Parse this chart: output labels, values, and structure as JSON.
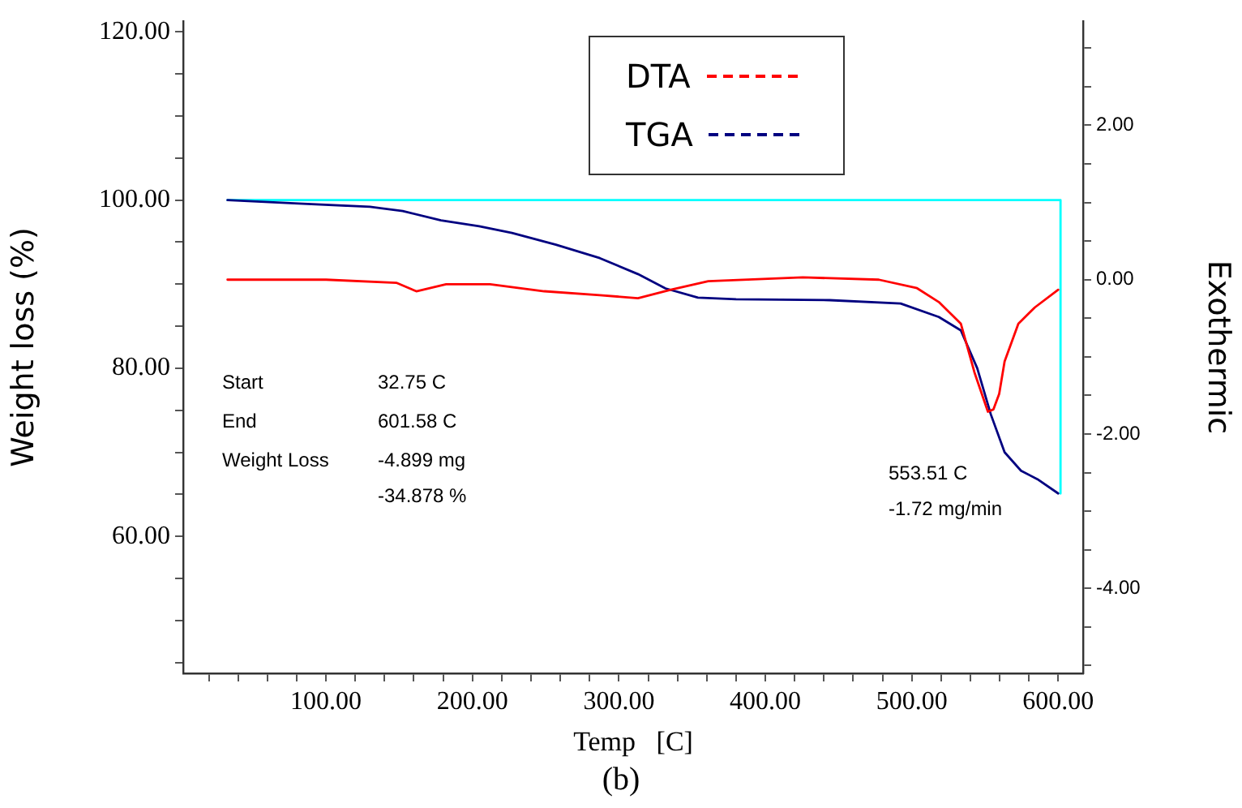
{
  "chart_data": {
    "type": "line",
    "xlabel": "Temp   [C]",
    "ylabel": "Weight loss (%)",
    "y2label": "Exothermic",
    "xlim": [
      2.5,
      617
    ],
    "xticks": [
      {
        "value": 20,
        "label": null
      },
      {
        "value": 40,
        "label": null
      },
      {
        "value": 60,
        "label": null
      },
      {
        "value": 80,
        "label": null
      },
      {
        "value": 100,
        "label": "100.00"
      },
      {
        "value": 120,
        "label": null
      },
      {
        "value": 140,
        "label": null
      },
      {
        "value": 160,
        "label": null
      },
      {
        "value": 180,
        "label": null
      },
      {
        "value": 200,
        "label": "200.00"
      },
      {
        "value": 220,
        "label": null
      },
      {
        "value": 240,
        "label": null
      },
      {
        "value": 260,
        "label": null
      },
      {
        "value": 280,
        "label": null
      },
      {
        "value": 300,
        "label": "300.00"
      },
      {
        "value": 320,
        "label": null
      },
      {
        "value": 340,
        "label": null
      },
      {
        "value": 360,
        "label": null
      },
      {
        "value": 380,
        "label": null
      },
      {
        "value": 400,
        "label": "400.00"
      },
      {
        "value": 420,
        "label": null
      },
      {
        "value": 440,
        "label": null
      },
      {
        "value": 460,
        "label": null
      },
      {
        "value": 480,
        "label": null
      },
      {
        "value": 500,
        "label": "500.00"
      },
      {
        "value": 520,
        "label": null
      },
      {
        "value": 540,
        "label": null
      },
      {
        "value": 560,
        "label": null
      },
      {
        "value": 580,
        "label": null
      },
      {
        "value": 600,
        "label": "600.00"
      }
    ],
    "ylim": [
      43.7,
      121.3
    ],
    "yticks": [
      {
        "value": 45,
        "label": null
      },
      {
        "value": 50,
        "label": null
      },
      {
        "value": 55,
        "label": null
      },
      {
        "value": 60,
        "label": "60.00"
      },
      {
        "value": 65,
        "label": null
      },
      {
        "value": 70,
        "label": null
      },
      {
        "value": 75,
        "label": null
      },
      {
        "value": 80,
        "label": "80.00"
      },
      {
        "value": 85,
        "label": null
      },
      {
        "value": 90,
        "label": null
      },
      {
        "value": 95,
        "label": null
      },
      {
        "value": 100,
        "label": "100.00"
      },
      {
        "value": 105,
        "label": null
      },
      {
        "value": 110,
        "label": null
      },
      {
        "value": 115,
        "label": null
      },
      {
        "value": 120,
        "label": "120.00"
      }
    ],
    "y2lim": [
      -5.1,
      3.35
    ],
    "y2ticks": [
      {
        "value": -5,
        "label": null
      },
      {
        "value": -4.5,
        "label": null
      },
      {
        "value": -4,
        "label": "-4.00"
      },
      {
        "value": -3.5,
        "label": null
      },
      {
        "value": -3,
        "label": null
      },
      {
        "value": -2.5,
        "label": null
      },
      {
        "value": -2,
        "label": "-2.00"
      },
      {
        "value": -1.5,
        "label": null
      },
      {
        "value": -1,
        "label": null
      },
      {
        "value": -0.5,
        "label": null
      },
      {
        "value": 0,
        "label": "0.00"
      },
      {
        "value": 0.5,
        "label": null
      },
      {
        "value": 1,
        "label": null
      },
      {
        "value": 1.5,
        "label": null
      },
      {
        "value": 2,
        "label": "2.00"
      },
      {
        "value": 2.5,
        "label": null
      },
      {
        "value": 3,
        "label": null
      }
    ],
    "legend": "top",
    "series": [
      {
        "name": "DTA",
        "color": "#ff0000",
        "axis": "y2",
        "x": [
          32.75,
          100,
          148,
          161.7,
          182,
          212,
          249,
          287,
          313,
          335.5,
          361,
          425.6,
          477.5,
          503.6,
          518.5,
          533.5,
          542.8,
          552,
          555.8,
          559.7,
          563.4,
          572.8,
          584,
          600
        ],
        "values": [
          0,
          0,
          -0.04,
          -0.15,
          -0.06,
          -0.06,
          -0.15,
          -0.2,
          -0.24,
          -0.13,
          -0.02,
          0.03,
          0,
          -0.11,
          -0.29,
          -0.57,
          -1.2,
          -1.71,
          -1.68,
          -1.48,
          -1.06,
          -0.57,
          -0.36,
          -0.13
        ]
      },
      {
        "name": "TGA",
        "color": "#000080",
        "x": [
          32.75,
          81.3,
          130,
          152.4,
          178.5,
          204.6,
          227,
          257,
          287,
          313,
          331.8,
          354,
          380,
          443.9,
          492.4,
          518.5,
          533.5,
          544.7,
          554,
          563.4,
          574.6,
          585.8,
          600
        ],
        "values": [
          100,
          99.6,
          99.2,
          98.7,
          97.6,
          96.9,
          96.1,
          94.7,
          93.1,
          91.2,
          89.5,
          88.4,
          88.2,
          88.1,
          87.7,
          86.1,
          84.5,
          80,
          74.5,
          70,
          67.8,
          66.8,
          65.1
        ]
      },
      {
        "color": "#00ffff",
        "x": [
          32.75,
          601.58,
          601.58
        ],
        "values": [
          100,
          100,
          65.1
        ]
      }
    ],
    "annotations": [
      "Start",
      "32.75 C",
      "End",
      "601.58 C",
      "Weight Loss",
      "-4.899 mg",
      "-34.878 %",
      "553.51 C",
      "-1.72 mg/min",
      "(b)"
    ]
  }
}
